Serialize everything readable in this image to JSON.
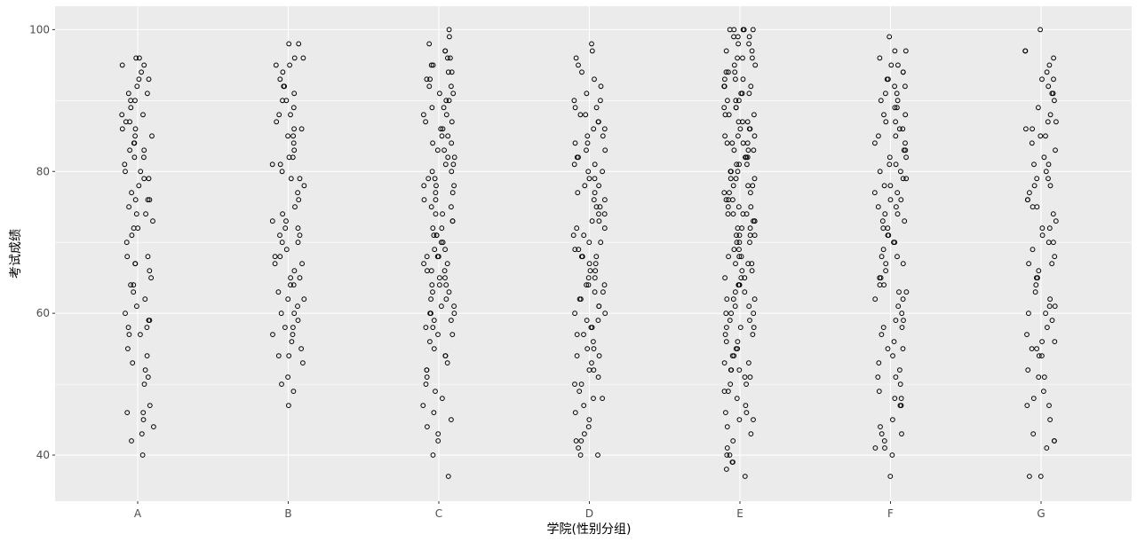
{
  "chart_data": {
    "type": "scatter",
    "title": "",
    "xlabel": "学院(性别分组)",
    "ylabel": "考试成绩",
    "categories": [
      "A",
      "B",
      "C",
      "D",
      "E",
      "F",
      "G"
    ],
    "ylim": [
      33.5,
      103.3
    ],
    "yticks": [
      40,
      60,
      80,
      100
    ],
    "grid": true,
    "jitter": true,
    "series": [
      {
        "category": "A",
        "values": [
          40,
          42,
          43,
          44,
          45,
          46,
          46,
          47,
          50,
          51,
          52,
          53,
          54,
          55,
          57,
          57,
          58,
          58,
          59,
          59,
          60,
          61,
          62,
          63,
          64,
          64,
          65,
          66,
          67,
          67,
          68,
          68,
          70,
          71,
          72,
          72,
          73,
          74,
          74,
          75,
          76,
          76,
          76,
          77,
          78,
          79,
          79,
          80,
          80,
          81,
          82,
          82,
          83,
          83,
          84,
          84,
          85,
          85,
          86,
          86,
          87,
          87,
          88,
          88,
          89,
          90,
          90,
          91,
          91,
          92,
          93,
          93,
          94,
          95,
          95,
          96,
          96
        ]
      },
      {
        "category": "B",
        "values": [
          47,
          49,
          50,
          51,
          53,
          54,
          54,
          55,
          56,
          57,
          57,
          58,
          58,
          59,
          60,
          60,
          61,
          62,
          62,
          63,
          64,
          64,
          65,
          65,
          66,
          67,
          67,
          68,
          68,
          69,
          70,
          70,
          71,
          71,
          72,
          72,
          73,
          73,
          74,
          75,
          76,
          77,
          78,
          79,
          79,
          80,
          81,
          81,
          82,
          82,
          83,
          84,
          85,
          85,
          86,
          86,
          87,
          88,
          88,
          89,
          90,
          90,
          91,
          92,
          92,
          93,
          94,
          95,
          95,
          96,
          96,
          98,
          98
        ]
      },
      {
        "category": "C",
        "values": [
          37,
          40,
          42,
          43,
          44,
          45,
          46,
          47,
          48,
          49,
          50,
          51,
          52,
          52,
          53,
          54,
          54,
          55,
          56,
          57,
          57,
          58,
          58,
          59,
          59,
          60,
          60,
          60,
          61,
          61,
          62,
          62,
          63,
          63,
          64,
          64,
          64,
          65,
          65,
          66,
          66,
          66,
          67,
          67,
          68,
          68,
          68,
          69,
          69,
          70,
          70,
          71,
          71,
          71,
          72,
          72,
          73,
          73,
          74,
          74,
          75,
          75,
          76,
          76,
          77,
          77,
          78,
          78,
          78,
          79,
          79,
          80,
          80,
          81,
          81,
          82,
          82,
          83,
          83,
          84,
          84,
          85,
          85,
          86,
          86,
          87,
          87,
          88,
          88,
          89,
          89,
          90,
          90,
          91,
          91,
          92,
          92,
          93,
          93,
          94,
          94,
          95,
          95,
          96,
          96,
          97,
          97,
          98,
          99,
          100
        ]
      },
      {
        "category": "D",
        "values": [
          40,
          40,
          41,
          42,
          42,
          43,
          44,
          45,
          46,
          47,
          48,
          48,
          49,
          50,
          50,
          51,
          52,
          52,
          53,
          54,
          54,
          55,
          55,
          56,
          57,
          57,
          58,
          58,
          59,
          59,
          60,
          60,
          61,
          61,
          62,
          62,
          63,
          63,
          64,
          64,
          64,
          65,
          65,
          66,
          66,
          67,
          67,
          68,
          68,
          68,
          69,
          69,
          70,
          70,
          71,
          71,
          72,
          72,
          73,
          73,
          74,
          74,
          75,
          75,
          76,
          76,
          77,
          77,
          78,
          78,
          79,
          79,
          80,
          80,
          81,
          81,
          82,
          82,
          83,
          83,
          84,
          84,
          85,
          85,
          86,
          86,
          87,
          87,
          88,
          88,
          89,
          89,
          90,
          90,
          91,
          92,
          93,
          94,
          95,
          96,
          97,
          98
        ]
      },
      {
        "category": "E",
        "values": [
          37,
          38,
          39,
          39,
          40,
          40,
          41,
          42,
          43,
          44,
          45,
          45,
          46,
          46,
          47,
          48,
          49,
          49,
          50,
          50,
          51,
          51,
          52,
          52,
          52,
          53,
          53,
          54,
          54,
          55,
          55,
          56,
          56,
          57,
          57,
          58,
          58,
          58,
          59,
          59,
          60,
          60,
          60,
          61,
          61,
          62,
          62,
          62,
          63,
          63,
          64,
          64,
          64,
          65,
          65,
          65,
          66,
          66,
          67,
          67,
          67,
          68,
          68,
          68,
          69,
          69,
          70,
          70,
          70,
          71,
          71,
          71,
          71,
          72,
          72,
          72,
          73,
          73,
          73,
          74,
          74,
          74,
          74,
          75,
          75,
          75,
          76,
          76,
          76,
          77,
          77,
          77,
          78,
          78,
          78,
          79,
          79,
          79,
          80,
          80,
          80,
          81,
          81,
          81,
          82,
          82,
          82,
          83,
          83,
          83,
          84,
          84,
          84,
          84,
          85,
          85,
          85,
          86,
          86,
          86,
          87,
          87,
          87,
          88,
          88,
          88,
          89,
          89,
          89,
          90,
          90,
          90,
          91,
          91,
          91,
          92,
          92,
          92,
          93,
          93,
          93,
          94,
          94,
          94,
          95,
          95,
          96,
          96,
          96,
          97,
          97,
          98,
          98,
          99,
          99,
          99,
          100,
          100,
          100,
          100,
          100
        ]
      },
      {
        "category": "F",
        "values": [
          37,
          40,
          41,
          41,
          42,
          43,
          43,
          44,
          45,
          47,
          47,
          48,
          48,
          49,
          50,
          51,
          51,
          52,
          53,
          54,
          55,
          55,
          56,
          57,
          58,
          58,
          59,
          59,
          60,
          61,
          62,
          62,
          63,
          63,
          64,
          64,
          65,
          65,
          66,
          67,
          67,
          68,
          68,
          69,
          70,
          70,
          71,
          71,
          72,
          72,
          73,
          73,
          74,
          74,
          75,
          75,
          76,
          76,
          77,
          77,
          78,
          78,
          79,
          79,
          80,
          80,
          81,
          81,
          82,
          82,
          83,
          83,
          84,
          84,
          85,
          85,
          86,
          86,
          87,
          87,
          88,
          88,
          89,
          89,
          90,
          90,
          91,
          91,
          92,
          92,
          93,
          93,
          94,
          94,
          95,
          95,
          96,
          97,
          97,
          99
        ]
      },
      {
        "category": "G",
        "values": [
          37,
          37,
          41,
          42,
          42,
          43,
          45,
          47,
          47,
          48,
          49,
          51,
          51,
          52,
          54,
          54,
          55,
          55,
          56,
          56,
          57,
          58,
          59,
          60,
          60,
          61,
          61,
          62,
          63,
          64,
          65,
          65,
          66,
          67,
          67,
          68,
          69,
          70,
          70,
          71,
          72,
          72,
          73,
          74,
          75,
          75,
          76,
          76,
          77,
          78,
          78,
          79,
          79,
          80,
          81,
          81,
          82,
          83,
          84,
          85,
          85,
          86,
          86,
          87,
          87,
          88,
          89,
          90,
          91,
          91,
          92,
          93,
          93,
          94,
          95,
          96,
          97,
          97,
          100
        ]
      }
    ]
  }
}
